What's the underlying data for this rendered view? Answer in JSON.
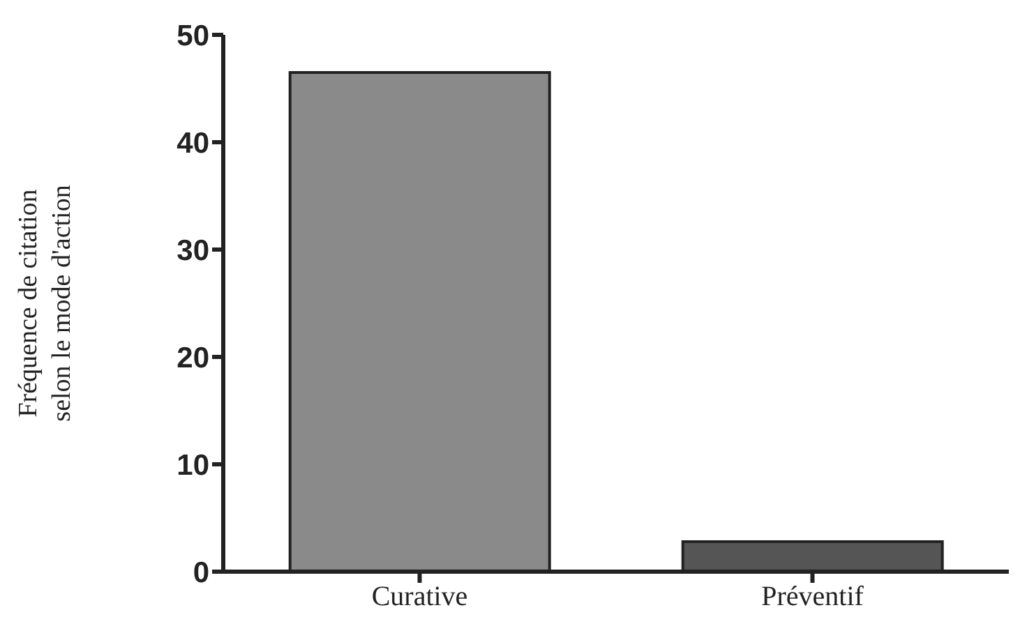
{
  "chart_data": {
    "type": "bar",
    "ylabel": "Fréquence de citation selon le mode d'action",
    "categories": [
      "Curative",
      "Préventif"
    ],
    "values": [
      46.5,
      2.8
    ],
    "colors": [
      "#8a8a8a",
      "#555555"
    ],
    "ylim": [
      0,
      50
    ],
    "yticks": [
      0,
      10,
      20,
      30,
      40,
      50
    ],
    "grid": false,
    "legend": false
  }
}
